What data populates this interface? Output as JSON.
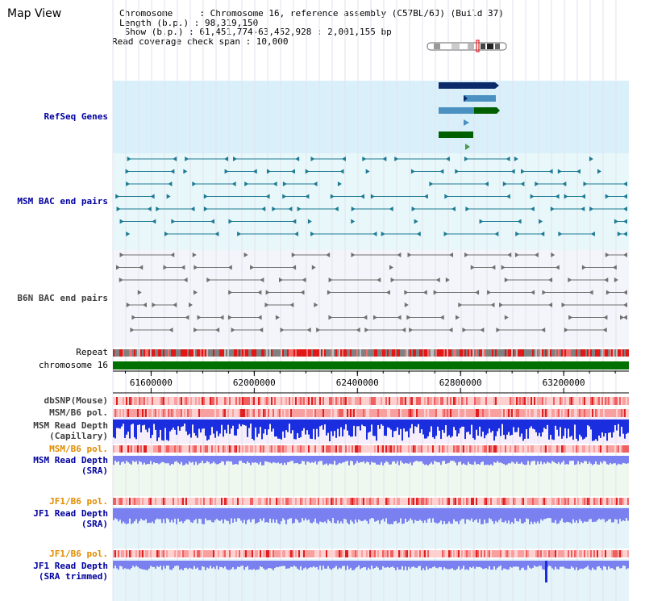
{
  "page": {
    "title": "Map View"
  },
  "info": {
    "chromosome": "Chromosome     : Chromosome 16, reference assembly (C57BL/6J) (Build 37)",
    "length": "Length (b.p.) : 98,319,150",
    "show": " Show (b.p.) : 61,451,774-63,452,928 : 2,001,155 bp",
    "coverage": "Read coverage check span : 10,000"
  },
  "tracks": {
    "refseq": "RefSeq Genes",
    "msm_bac": "MSM BAC end pairs",
    "b6n_bac": "B6N BAC end pairs",
    "repeat": "Repeat",
    "chromosome": "chromosome 16",
    "dbsnp": "dbSNP(Mouse)",
    "msm_b6_pol_1": "MSM/B6 pol.",
    "msm_read_depth_cap_1": "MSM Read Depth",
    "msm_read_depth_cap_2": "(Capillary)",
    "msm_b6_pol_2": "MSM/B6 pol.",
    "msm_read_depth_sra_1": "MSM Read Depth",
    "msm_read_depth_sra_2": "(SRA)",
    "jf1_b6_pol_1": "JF1/B6 pol.",
    "jf1_read_depth_sra_1": "JF1 Read Depth",
    "jf1_read_depth_sra_2": "(SRA)",
    "jf1_b6_pol_2": "JF1/B6 pol.",
    "jf1_read_depth_trim_1": "JF1 Read Depth",
    "jf1_read_depth_trim_2": "(SRA trimmed)"
  },
  "axis": {
    "range": [
      61451774,
      63452928
    ],
    "ticks": [
      61600000,
      62000000,
      62400000,
      62800000,
      63200000
    ],
    "tick_labels": [
      "61600000",
      "62000000",
      "62400000",
      "62800000",
      "63200000"
    ]
  },
  "colors": {
    "refseq_bg": "#d9f0fa",
    "bac_bg": "#e8f8fa",
    "b6n_bg": "#f4f5fa",
    "msm_bac": "#1d7a93",
    "b6n_bac": "#707070",
    "chromosome": "#007000",
    "depth_capillary": "#1a2ee0",
    "depth_sra": "#7a80f0"
  }
}
